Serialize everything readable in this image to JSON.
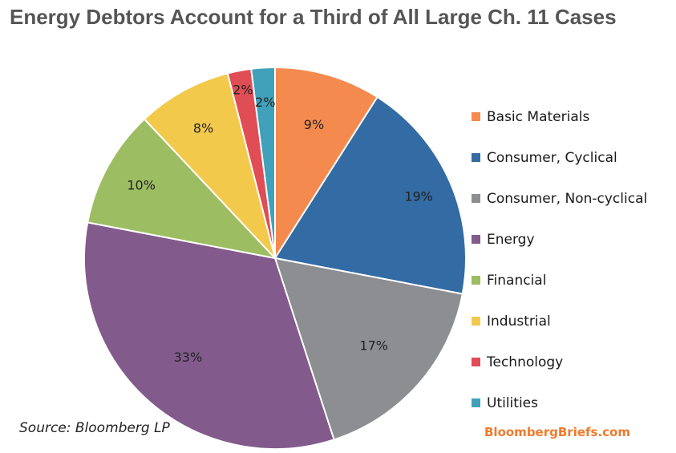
{
  "title": "Energy Debtors Account for a Third of All Large Ch. 11 Cases",
  "source": "Source: Bloomberg LP",
  "brand": "BloombergBriefs.com",
  "chart_data": {
    "type": "pie",
    "labels": [
      "Basic Materials",
      "Consumer, Cyclical",
      "Consumer, Non-cyclical",
      "Energy",
      "Financial",
      "Industrial",
      "Technology",
      "Utilities"
    ],
    "values": [
      9,
      19,
      17,
      33,
      10,
      8,
      2,
      2
    ],
    "value_labels": [
      "9%",
      "19%",
      "17%",
      "33%",
      "10%",
      "8%",
      "2%",
      "2%"
    ],
    "colors": [
      "#f58a4f",
      "#336ba4",
      "#8c8e91",
      "#825a8c",
      "#9dbd63",
      "#f2c94b",
      "#e04d55",
      "#41a1bb"
    ],
    "legend_position": "right",
    "start": "12 o'clock",
    "direction": "clockwise"
  }
}
